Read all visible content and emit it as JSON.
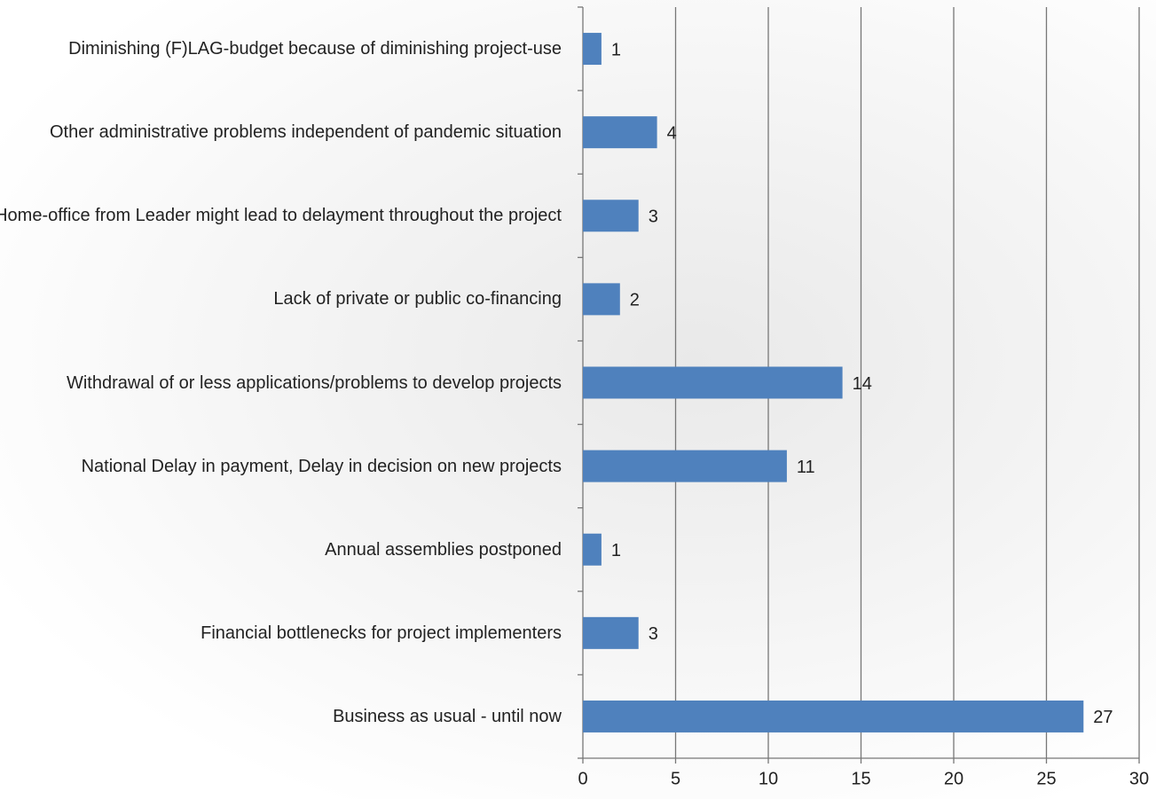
{
  "chart_data": {
    "type": "barh",
    "categories": [
      "Diminishing (F)LAG-budget because of diminishing project-use",
      "Other administrative problems independent of pandemic situation",
      "Home-office from Leader might lead to delayment throughout the project",
      "Lack of private or public co-financing",
      "Withdrawal of or less applications/problems to develop projects",
      "National Delay in payment, Delay in decision on new projects",
      "Annual assemblies postponed",
      "Financial bottlenecks for project implementers",
      "Business as usual - until now"
    ],
    "values": [
      1,
      4,
      3,
      2,
      14,
      11,
      1,
      3,
      27
    ],
    "color": "#4f81bd",
    "xlim": [
      0,
      30
    ],
    "xticks": [
      0,
      5,
      10,
      15,
      20,
      25,
      30
    ],
    "grid": true
  }
}
